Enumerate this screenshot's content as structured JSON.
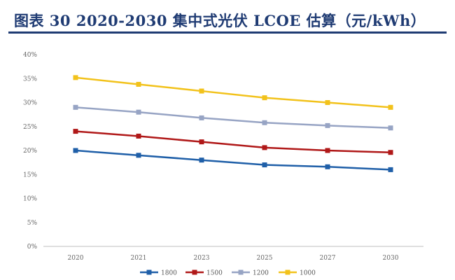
{
  "title": "图表 30   2020-2030 集中式光伏 LCOE 估算（元/kWh）",
  "chart_data": {
    "type": "line",
    "title": "",
    "xlabel": "",
    "ylabel": "",
    "categories": [
      "2020",
      "2021",
      "2023",
      "2025",
      "2027",
      "2030"
    ],
    "y_ticks": [
      "0%",
      "5%",
      "10%",
      "15%",
      "20%",
      "25%",
      "30%",
      "35%",
      "40%"
    ],
    "ylim": [
      0,
      40
    ],
    "grid": false,
    "legend_position": "bottom",
    "series": [
      {
        "name": "1800",
        "color": "#1f5fa8",
        "values": [
          20.0,
          19.0,
          18.0,
          17.0,
          16.6,
          16.0
        ]
      },
      {
        "name": "1500",
        "color": "#b01818",
        "values": [
          24.0,
          23.0,
          21.8,
          20.6,
          20.0,
          19.6
        ]
      },
      {
        "name": "1200",
        "color": "#97a4c4",
        "values": [
          29.0,
          28.0,
          26.8,
          25.8,
          25.2,
          24.7
        ]
      },
      {
        "name": "1000",
        "color": "#f2c21b",
        "values": [
          35.2,
          33.8,
          32.4,
          31.0,
          30.0,
          29.0
        ]
      }
    ]
  }
}
